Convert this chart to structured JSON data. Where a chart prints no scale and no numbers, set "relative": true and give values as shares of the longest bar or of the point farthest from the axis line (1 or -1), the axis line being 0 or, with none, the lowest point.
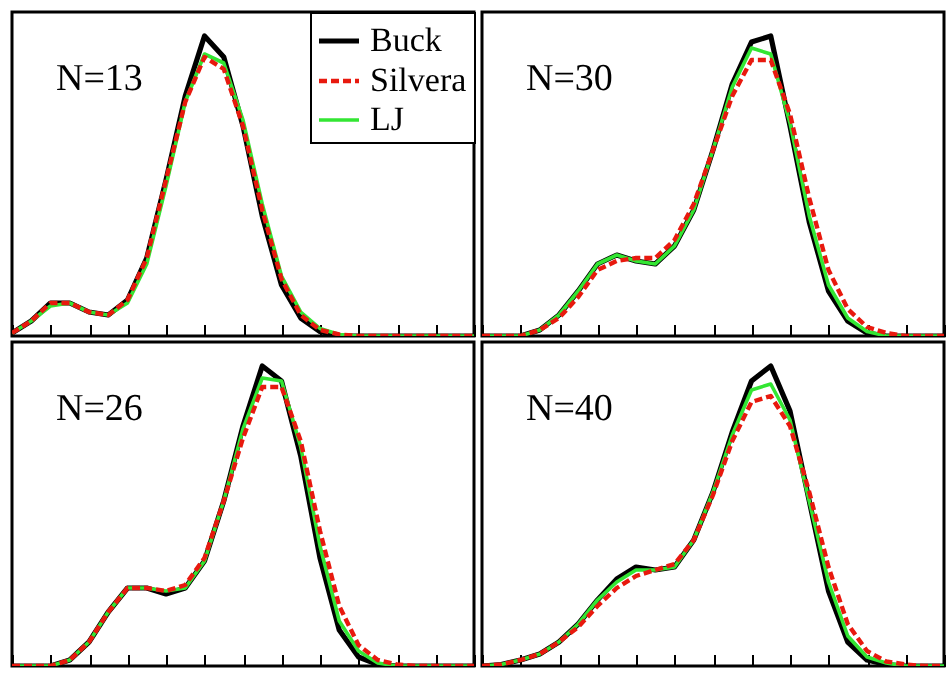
{
  "chart_data": [
    {
      "type": "line",
      "relative": true,
      "tick_labels": false,
      "legend": "top right",
      "annotations": [
        "N=13"
      ],
      "categories": [
        null,
        null,
        null,
        null,
        null,
        null,
        null,
        null,
        null,
        null,
        null,
        null,
        null,
        null,
        null,
        null,
        null,
        null,
        null,
        null,
        null,
        null,
        null,
        null,
        null
      ],
      "series": [
        {
          "name": "Buck",
          "color": "#000000",
          "line_style": "solid",
          "values": [
            0.01,
            0.05,
            0.11,
            0.11,
            0.08,
            0.07,
            0.12,
            0.26,
            0.52,
            0.8,
            1.0,
            0.93,
            0.7,
            0.4,
            0.17,
            0.06,
            0.015,
            0,
            0,
            0,
            0,
            0,
            0,
            0,
            0
          ]
        },
        {
          "name": "Silvera",
          "color": "#e8190e",
          "line_style": "dashed",
          "values": [
            0.01,
            0.05,
            0.11,
            0.11,
            0.08,
            0.07,
            0.12,
            0.26,
            0.52,
            0.78,
            0.93,
            0.89,
            0.7,
            0.42,
            0.19,
            0.07,
            0.02,
            0.005,
            0,
            0,
            0,
            0,
            0,
            0,
            0
          ]
        },
        {
          "name": "LJ",
          "color": "#33e633",
          "line_style": "solid",
          "values": [
            0.01,
            0.05,
            0.1,
            0.11,
            0.08,
            0.07,
            0.11,
            0.24,
            0.5,
            0.78,
            0.94,
            0.91,
            0.72,
            0.44,
            0.2,
            0.08,
            0.025,
            0.005,
            0,
            0,
            0,
            0,
            0,
            0,
            0
          ]
        }
      ]
    },
    {
      "type": "line",
      "relative": true,
      "tick_labels": false,
      "annotations": [
        "N=30"
      ],
      "categories": [
        null,
        null,
        null,
        null,
        null,
        null,
        null,
        null,
        null,
        null,
        null,
        null,
        null,
        null,
        null,
        null,
        null,
        null,
        null,
        null,
        null,
        null,
        null,
        null,
        null
      ],
      "series": [
        {
          "color": "#000000",
          "line_style": "solid",
          "values": [
            0,
            0,
            0,
            0.02,
            0.07,
            0.15,
            0.24,
            0.27,
            0.25,
            0.24,
            0.3,
            0.42,
            0.62,
            0.84,
            0.98,
            1.0,
            0.7,
            0.38,
            0.15,
            0.05,
            0.01,
            0,
            0,
            0,
            0
          ]
        },
        {
          "color": "#e8190e",
          "line_style": "dashed",
          "values": [
            0,
            0,
            0,
            0.02,
            0.06,
            0.13,
            0.22,
            0.25,
            0.26,
            0.26,
            0.32,
            0.44,
            0.62,
            0.8,
            0.92,
            0.92,
            0.74,
            0.46,
            0.22,
            0.09,
            0.03,
            0.01,
            0,
            0,
            0
          ]
        },
        {
          "color": "#33e633",
          "line_style": "solid",
          "values": [
            0,
            0,
            0,
            0.02,
            0.07,
            0.15,
            0.24,
            0.27,
            0.25,
            0.24,
            0.3,
            0.42,
            0.62,
            0.83,
            0.96,
            0.94,
            0.71,
            0.4,
            0.17,
            0.06,
            0.015,
            0,
            0,
            0,
            0
          ]
        }
      ]
    },
    {
      "type": "line",
      "relative": true,
      "tick_labels": false,
      "annotations": [
        "N=26"
      ],
      "categories": [
        null,
        null,
        null,
        null,
        null,
        null,
        null,
        null,
        null,
        null,
        null,
        null,
        null,
        null,
        null,
        null,
        null,
        null,
        null,
        null,
        null,
        null,
        null,
        null,
        null
      ],
      "series": [
        {
          "color": "#000000",
          "line_style": "solid",
          "values": [
            0,
            0,
            0,
            0.02,
            0.08,
            0.18,
            0.26,
            0.26,
            0.24,
            0.26,
            0.35,
            0.55,
            0.8,
            1.0,
            0.95,
            0.7,
            0.36,
            0.12,
            0.03,
            0.005,
            0,
            0,
            0,
            0,
            0
          ]
        },
        {
          "color": "#e8190e",
          "line_style": "dashed",
          "values": [
            0,
            0,
            0,
            0.02,
            0.08,
            0.18,
            0.26,
            0.26,
            0.25,
            0.27,
            0.36,
            0.55,
            0.76,
            0.93,
            0.93,
            0.75,
            0.45,
            0.2,
            0.07,
            0.02,
            0.005,
            0,
            0,
            0,
            0
          ]
        },
        {
          "color": "#33e633",
          "line_style": "solid",
          "values": [
            0,
            0,
            0,
            0.02,
            0.08,
            0.18,
            0.26,
            0.26,
            0.25,
            0.26,
            0.35,
            0.55,
            0.79,
            0.96,
            0.95,
            0.73,
            0.4,
            0.15,
            0.05,
            0.01,
            0,
            0,
            0,
            0,
            0
          ]
        }
      ]
    },
    {
      "type": "line",
      "relative": true,
      "tick_labels": false,
      "annotations": [
        "N=40"
      ],
      "categories": [
        null,
        null,
        null,
        null,
        null,
        null,
        null,
        null,
        null,
        null,
        null,
        null,
        null,
        null,
        null,
        null,
        null,
        null,
        null,
        null,
        null,
        null,
        null,
        null,
        null
      ],
      "series": [
        {
          "color": "#000000",
          "line_style": "solid",
          "values": [
            0,
            0.005,
            0.02,
            0.04,
            0.08,
            0.14,
            0.22,
            0.29,
            0.33,
            0.32,
            0.33,
            0.42,
            0.58,
            0.78,
            0.95,
            1.0,
            0.85,
            0.55,
            0.25,
            0.08,
            0.02,
            0.005,
            0,
            0,
            0
          ]
        },
        {
          "color": "#e8190e",
          "line_style": "dashed",
          "values": [
            0,
            0.005,
            0.02,
            0.04,
            0.08,
            0.13,
            0.2,
            0.26,
            0.3,
            0.32,
            0.34,
            0.42,
            0.57,
            0.75,
            0.88,
            0.9,
            0.8,
            0.58,
            0.33,
            0.14,
            0.05,
            0.015,
            0.005,
            0,
            0
          ]
        },
        {
          "color": "#33e633",
          "line_style": "solid",
          "values": [
            0,
            0.005,
            0.02,
            0.04,
            0.08,
            0.14,
            0.22,
            0.28,
            0.32,
            0.32,
            0.33,
            0.42,
            0.58,
            0.77,
            0.92,
            0.94,
            0.82,
            0.55,
            0.28,
            0.1,
            0.03,
            0.01,
            0,
            0,
            0
          ]
        }
      ]
    }
  ]
}
